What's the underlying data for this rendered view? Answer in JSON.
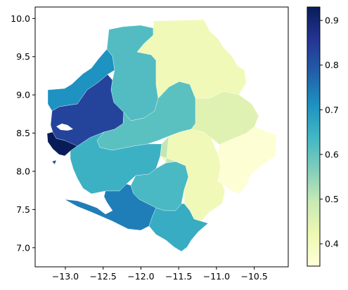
{
  "chart_data": {
    "type": "map",
    "xlim": [
      -13.4,
      -10.05
    ],
    "ylim": [
      6.75,
      10.15
    ],
    "xticks": [
      -13.0,
      -12.5,
      -12.0,
      -11.5,
      -11.0,
      -10.5
    ],
    "xtick_labels": [
      "−13.0",
      "−12.5",
      "−12.0",
      "−11.5",
      "−11.0",
      "−10.5"
    ],
    "yticks": [
      7.0,
      7.5,
      8.0,
      8.5,
      9.0,
      9.5,
      10.0
    ],
    "ytick_labels": [
      "7.0",
      "7.5",
      "8.0",
      "8.5",
      "9.0",
      "9.5",
      "10.0"
    ],
    "colormap": "YlGnBu",
    "color_range": [
      0.35,
      0.93
    ],
    "colorbar_ticks": [
      0.4,
      0.5,
      0.6,
      0.7,
      0.8,
      0.9
    ],
    "colorbar_tick_labels": [
      "0.4",
      "0.5",
      "0.6",
      "0.7",
      "0.8",
      "0.9"
    ],
    "regions": [
      {
        "value": 0.93
      },
      {
        "value": 0.83
      },
      {
        "value": 0.71
      },
      {
        "value": 0.62
      },
      {
        "value": 0.61
      },
      {
        "value": 0.65
      },
      {
        "value": 0.63
      },
      {
        "value": 0.41
      },
      {
        "value": 0.45
      },
      {
        "value": 0.5
      },
      {
        "value": 0.41
      },
      {
        "value": 0.36
      },
      {
        "value": 0.74
      },
      {
        "value": 0.66
      }
    ]
  }
}
